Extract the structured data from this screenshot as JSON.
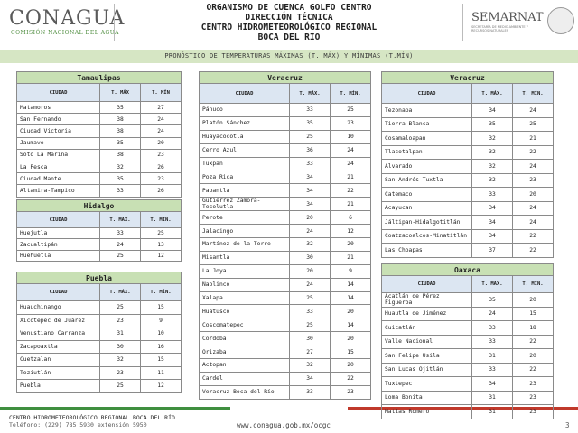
{
  "header": {
    "logo_left": "CONAGUA",
    "logo_left_sub": "COMISIÓN NACIONAL DEL AGUA",
    "title_lines": [
      "ORGANISMO DE CUENCA GOLFO CENTRO",
      "DIRECCIÓN TÉCNICA",
      "CENTRO HIDROMETEOROLÓGICO REGIONAL",
      "BOCA DEL RÍO"
    ],
    "logo_right": "SEMARNAT",
    "logo_right_sub": "SECRETARÍA DE MEDIO AMBIENTE Y RECURSOS NATURALES"
  },
  "banner": "PRONÓSTICO DE TEMPERATURAS MÁXIMAS (T. MÁX) Y MÍNIMAS (T.MÍN)",
  "tables": [
    {
      "title": "Tamaulipas",
      "columns": [
        "CIUDAD",
        "T. MÁX",
        "T. MÍN"
      ],
      "rows": [
        [
          "Matamoros",
          35,
          27
        ],
        [
          "San Fernando",
          38,
          24
        ],
        [
          "Ciudad Victoria",
          38,
          24
        ],
        [
          "Jaumave",
          35,
          20
        ],
        [
          "Soto La Marina",
          38,
          23
        ],
        [
          "La Pesca",
          32,
          26
        ],
        [
          "Ciudad Mante",
          35,
          23
        ],
        [
          "Altamira-Tampico",
          33,
          26
        ]
      ]
    },
    {
      "title": "Hidalgo",
      "columns": [
        "CIUDAD",
        "T. MÁX.",
        "T. MÍN."
      ],
      "rows": [
        [
          "Huejutla",
          33,
          25
        ],
        [
          "Zacualtipán",
          24,
          13
        ],
        [
          "Huehuetla",
          25,
          12
        ]
      ]
    },
    {
      "title": "Puebla",
      "columns": [
        "CIUDAD",
        "T. MÁX.",
        "T. MÍN."
      ],
      "rows": [
        [
          "Huauchinango",
          25,
          15
        ],
        [
          "Xicotepec de Juárez",
          23,
          9
        ],
        [
          "Venustiano Carranza",
          31,
          10
        ],
        [
          "Zacapoaxtla",
          30,
          16
        ],
        [
          "Cuetzalan",
          32,
          15
        ],
        [
          "Teziutlán",
          23,
          11
        ],
        [
          "Puebla",
          25,
          12
        ]
      ]
    },
    {
      "title": "Veracruz",
      "columns": [
        "CIUDAD",
        "T. MÁX.",
        "T. MÍN."
      ],
      "rows": [
        [
          "Pánuco",
          33,
          25
        ],
        [
          "Platón Sánchez",
          35,
          23
        ],
        [
          "Huayacocotla",
          25,
          10
        ],
        [
          "Cerro Azul",
          36,
          24
        ],
        [
          "Tuxpan",
          33,
          24
        ],
        [
          "Poza Rica",
          34,
          21
        ],
        [
          "Papantla",
          34,
          22
        ],
        [
          "Gutiérrez Zamora-Tecolutla",
          34,
          21
        ],
        [
          "Perote",
          20,
          6
        ],
        [
          "Jalacingo",
          24,
          12
        ],
        [
          "Martínez de la Torre",
          32,
          20
        ],
        [
          "Misantla",
          30,
          21
        ],
        [
          "La Joya",
          20,
          9
        ],
        [
          "Naolinco",
          24,
          14
        ],
        [
          "Xalapa",
          25,
          14
        ],
        [
          "Huatusco",
          33,
          20
        ],
        [
          "Coscomatepec",
          25,
          14
        ],
        [
          "Córdoba",
          30,
          20
        ],
        [
          "Orizaba",
          27,
          15
        ],
        [
          "Actopan",
          32,
          20
        ],
        [
          "Cardel",
          34,
          22
        ],
        [
          "Veracruz-Boca del Río",
          33,
          23
        ]
      ]
    },
    {
      "title": "Veracruz",
      "columns": [
        "CIUDAD",
        "T. MÁX.",
        "T. MÍN."
      ],
      "rows": [
        [
          "Tezonapa",
          34,
          24
        ],
        [
          "Tierra Blanca",
          35,
          25
        ],
        [
          "Cosamaloapan",
          32,
          21
        ],
        [
          "Tlacotalpan",
          32,
          22
        ],
        [
          "Alvarado",
          32,
          24
        ],
        [
          "San Andrés Tuxtla",
          32,
          23
        ],
        [
          "Catemaco",
          33,
          20
        ],
        [
          "Acayucan",
          34,
          24
        ],
        [
          "Jáltipan-Hidalgotitlán",
          34,
          24
        ],
        [
          "Coatzacoalcos-Minatitlán",
          34,
          22
        ],
        [
          "Las Choapas",
          37,
          22
        ]
      ]
    },
    {
      "title": "Oaxaca",
      "columns": [
        "CIUDAD",
        "T. MÁX.",
        "T. MÍN."
      ],
      "rows": [
        [
          "Acatlán de Pérez Figueroa",
          35,
          20
        ],
        [
          "Huautla de Jiménez",
          24,
          15
        ],
        [
          "Cuicatlán",
          33,
          18
        ],
        [
          "Valle Nacional",
          33,
          22
        ],
        [
          "San Felipe Usila",
          31,
          20
        ],
        [
          "San Lucas Ojitlán",
          33,
          22
        ],
        [
          "Tuxtepec",
          34,
          23
        ],
        [
          "Loma Bonita",
          31,
          23
        ],
        [
          "Matías Romero",
          31,
          23
        ]
      ]
    }
  ],
  "footer": {
    "line1": "CENTRO HIDROMETEOROLÓGICO REGIONAL BOCA DEL RÍO",
    "line2": "Teléfono: (229) 785 5930 extensión 5950",
    "url": "www.conagua.gob.mx/ocgc",
    "page": "3"
  }
}
